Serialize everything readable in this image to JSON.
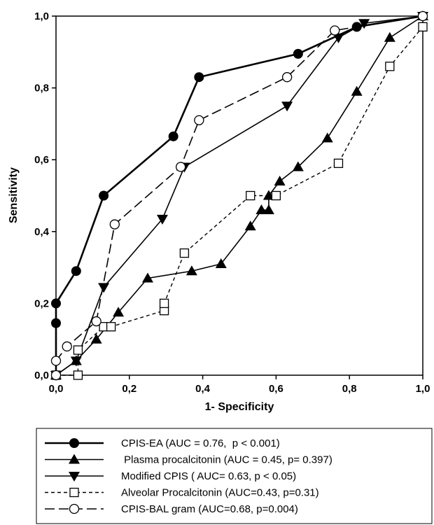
{
  "chart_data": {
    "type": "line",
    "title": "",
    "xlabel": "1- Specificity",
    "ylabel": "Sensitivity",
    "xlim": [
      0,
      1
    ],
    "ylim": [
      0,
      1
    ],
    "xticks": [
      "0,0",
      "0,2",
      "0,4",
      "0,6",
      "0,8",
      "1,0"
    ],
    "yticks": [
      "0,0",
      "0,2",
      "0,4",
      "0,6",
      "0,8",
      "1,0"
    ],
    "grid": false,
    "legend_position": "bottom",
    "series": [
      {
        "name": "CPIS-EA (AUC = 0.76,  p < 0.001)",
        "marker": "circle-filled",
        "line": "solid-thick",
        "x": [
          0,
          0,
          0,
          0.055,
          0.13,
          0.32,
          0.39,
          0.66,
          0.82,
          1.0
        ],
        "y": [
          0,
          0.145,
          0.2,
          0.29,
          0.5,
          0.665,
          0.83,
          0.895,
          0.97,
          1.0
        ]
      },
      {
        "name": " Plasma procalcitonin (AUC = 0.45, p= 0.397)",
        "marker": "triangle-up-filled",
        "line": "solid",
        "x": [
          0,
          0.055,
          0.11,
          0.17,
          0.25,
          0.37,
          0.45,
          0.53,
          0.56,
          0.58,
          0.58,
          0.61,
          0.66,
          0.74,
          0.82,
          0.91,
          1.0
        ],
        "y": [
          0,
          0.04,
          0.1,
          0.175,
          0.27,
          0.29,
          0.31,
          0.415,
          0.46,
          0.46,
          0.5,
          0.54,
          0.58,
          0.66,
          0.79,
          0.94,
          1.0
        ]
      },
      {
        "name": "Modified CPIS ( AUC= 0.63, p < 0.05)",
        "marker": "triangle-down-filled",
        "line": "solid",
        "x": [
          0,
          0.055,
          0.13,
          0.29,
          0.35,
          0.63,
          0.77,
          0.84,
          1.0
        ],
        "y": [
          0,
          0.04,
          0.245,
          0.435,
          0.58,
          0.75,
          0.94,
          0.98,
          1.0
        ]
      },
      {
        "name": "Alveolar Procalcitonin (AUC=0.43, p=0.31)",
        "marker": "square-open",
        "line": "dashed-short",
        "x": [
          0,
          0.06,
          0.06,
          0.13,
          0.15,
          0.295,
          0.295,
          0.35,
          0.53,
          0.6,
          0.77,
          0.91,
          1.0
        ],
        "y": [
          0,
          0,
          0.07,
          0.135,
          0.135,
          0.18,
          0.2,
          0.34,
          0.5,
          0.5,
          0.59,
          0.86,
          0.97
        ]
      },
      {
        "name": "CPIS-BAL gram (AUC=0.68, p=0.004)",
        "marker": "circle-open",
        "line": "dashed-long",
        "x": [
          0,
          0,
          0.03,
          0.11,
          0.16,
          0.34,
          0.39,
          0.63,
          0.76,
          1.0
        ],
        "y": [
          0,
          0.04,
          0.08,
          0.15,
          0.42,
          0.58,
          0.71,
          0.83,
          0.96,
          1.0
        ]
      }
    ]
  }
}
